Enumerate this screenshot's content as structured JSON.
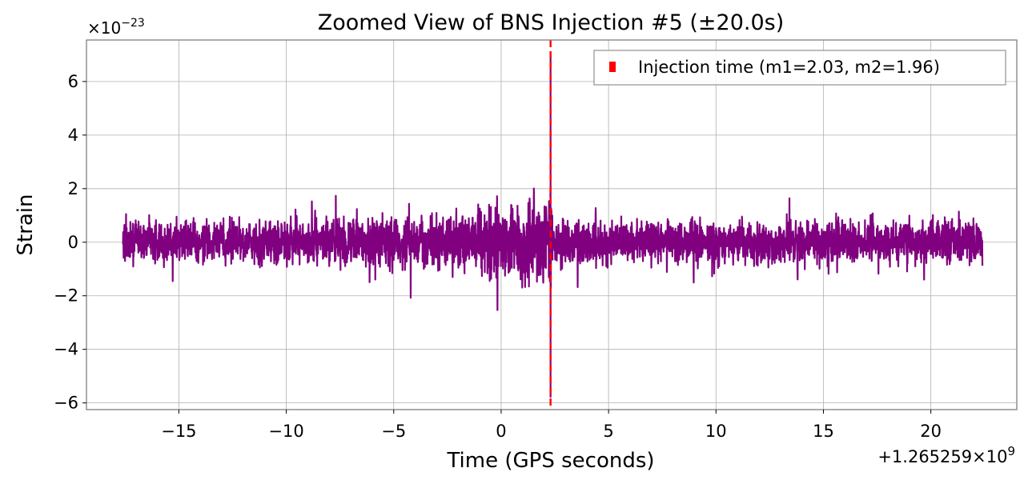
{
  "chart_data": {
    "type": "line",
    "title": "Zoomed View of BNS Injection #5 (±20.0s)",
    "xlabel": "Time (GPS seconds)",
    "ylabel": "Strain",
    "x_offset_label": "+1.265259×10",
    "x_offset_exponent": "9",
    "y_scale_label": "×10",
    "y_scale_exponent": "−23",
    "xlim": [
      -19.3,
      24.0
    ],
    "ylim": [
      -6.25,
      7.55
    ],
    "x_ticks": [
      -15,
      -10,
      -5,
      0,
      5,
      10,
      15,
      20
    ],
    "x_tick_labels": [
      "−15",
      "−10",
      "−5",
      "0",
      "5",
      "10",
      "15",
      "20"
    ],
    "y_ticks": [
      -6,
      -4,
      -2,
      0,
      2,
      4,
      6
    ],
    "y_tick_labels": [
      "−6",
      "−4",
      "−2",
      "0",
      "2",
      "4",
      "6"
    ],
    "grid": true,
    "series": [
      {
        "name": "strain",
        "color": "#800080",
        "x_range": [
          -17.6,
          22.4
        ],
        "envelope_x": [
          -17.6,
          -15,
          -10,
          -5,
          -2,
          0,
          1.0,
          1.5,
          2.0,
          2.3,
          2.4,
          5,
          10,
          15,
          20,
          22.4
        ],
        "envelope_amplitude": [
          0.8,
          0.8,
          0.85,
          0.95,
          1.1,
          1.3,
          1.45,
          1.6,
          1.9,
          2.4,
          0.9,
          0.85,
          0.85,
          0.85,
          0.85,
          0.85
        ],
        "peak_max": 7.0,
        "peak_min": -5.8,
        "peak_x": 2.3
      }
    ],
    "markers": [
      {
        "type": "vline",
        "x": 2.3,
        "color": "#ff0000",
        "style": "dashed",
        "label": "Injection time (m1=2.03, m2=1.96)"
      }
    ],
    "legend_position": "top-right"
  }
}
